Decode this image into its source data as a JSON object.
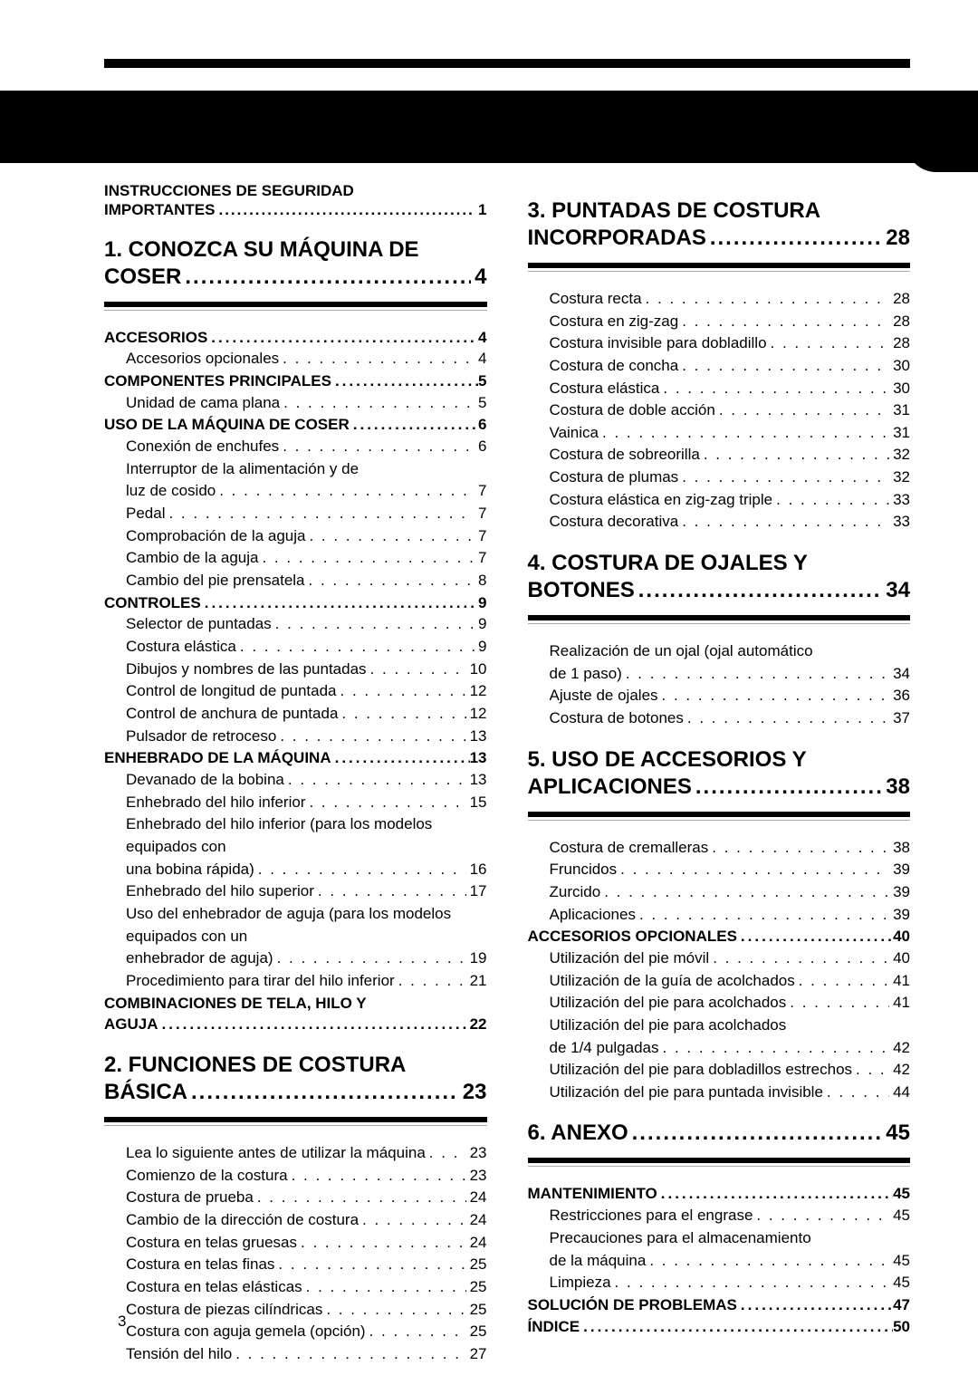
{
  "page_number": "3",
  "intro": {
    "label": "INSTRUCCIONES DE SEGURIDAD IMPORTANTES",
    "page": "1"
  },
  "left": {
    "chapters": [
      {
        "num": "1.",
        "title": "CONOZCA SU MÁQUINA DE COSER",
        "page": "4",
        "sections": [
          {
            "title": "ACCESORIOS",
            "page": "4",
            "entries": [
              {
                "label": "Accesorios opcionales",
                "page": "4"
              }
            ]
          },
          {
            "title": "COMPONENTES PRINCIPALES",
            "page": "5",
            "entries": [
              {
                "label": "Unidad de cama plana",
                "page": "5"
              }
            ]
          },
          {
            "title": "USO DE LA MÁQUINA DE COSER",
            "page": "6",
            "entries": [
              {
                "label": "Conexión de enchufes",
                "page": "6"
              },
              {
                "label": "Interruptor de la alimentación y de luz de cosido",
                "wrap": true,
                "page": "7"
              },
              {
                "label": "Pedal",
                "page": "7"
              },
              {
                "label": "Comprobación de la aguja",
                "page": "7"
              },
              {
                "label": "Cambio de la aguja",
                "page": "7"
              },
              {
                "label": "Cambio del pie prensatela",
                "page": "8"
              }
            ]
          },
          {
            "title": "CONTROLES",
            "page": "9",
            "entries": [
              {
                "label": "Selector de puntadas",
                "page": "9"
              },
              {
                "label": "Costura elástica",
                "page": "9"
              },
              {
                "label": "Dibujos y nombres de las puntadas",
                "page": "10"
              },
              {
                "label": "Control de longitud de puntada",
                "page": "12"
              },
              {
                "label": "Control de anchura de puntada",
                "page": "12"
              },
              {
                "label": "Pulsador de retroceso",
                "page": "13"
              }
            ]
          },
          {
            "title": "ENHEBRADO DE LA MÁQUINA",
            "page": "13",
            "entries": [
              {
                "label": "Devanado de la bobina",
                "page": "13"
              },
              {
                "label": "Enhebrado del hilo inferior",
                "page": "15"
              },
              {
                "label": "Enhebrado del hilo inferior (para los modelos equipados con una bobina rápida)",
                "wrap": true,
                "page": "16"
              },
              {
                "label": "Enhebrado del hilo superior",
                "page": "17"
              },
              {
                "label": "Uso del enhebrador de aguja (para los modelos equipados con un enhebrador de aguja)",
                "wrap": true,
                "page": "19"
              },
              {
                "label": "Procedimiento para tirar del hilo inferior",
                "page": "21"
              }
            ]
          },
          {
            "title": "COMBINACIONES DE TELA, HILO Y AGUJA",
            "page": "22",
            "wrap": true,
            "entries": []
          }
        ]
      },
      {
        "num": "2.",
        "title": "FUNCIONES DE COSTURA BÁSICA",
        "page": "23",
        "sections": [
          {
            "title": "",
            "page": "",
            "entries": [
              {
                "label": "Lea lo siguiente antes de utilizar la máquina",
                "page": "23"
              },
              {
                "label": "Comienzo de la costura",
                "page": "23"
              },
              {
                "label": "Costura de prueba",
                "page": "24"
              },
              {
                "label": "Cambio de la dirección de costura",
                "page": "24"
              },
              {
                "label": "Costura en telas gruesas",
                "page": "24"
              },
              {
                "label": "Costura en telas finas",
                "page": "25"
              },
              {
                "label": "Costura en telas elásticas",
                "page": "25"
              },
              {
                "label": "Costura de piezas cilíndricas",
                "page": "25"
              },
              {
                "label": "Costura con aguja gemela (opción)",
                "page": "25"
              },
              {
                "label": "Tensión del hilo",
                "page": "27"
              }
            ]
          }
        ]
      }
    ]
  },
  "right": {
    "chapters": [
      {
        "num": "3.",
        "title": "PUNTADAS DE COSTURA INCORPORADAS",
        "page": "28",
        "sections": [
          {
            "title": "",
            "page": "",
            "entries": [
              {
                "label": "Costura recta",
                "page": "28"
              },
              {
                "label": "Costura en zig-zag",
                "page": "28"
              },
              {
                "label": "Costura invisible para dobladillo",
                "page": "28"
              },
              {
                "label": "Costura de concha",
                "page": "30"
              },
              {
                "label": "Costura elástica",
                "page": "30"
              },
              {
                "label": "Costura de doble acción",
                "page": "31"
              },
              {
                "label": "Vainica",
                "page": "31"
              },
              {
                "label": "Costura de sobreorilla",
                "page": "32"
              },
              {
                "label": "Costura de plumas",
                "page": "32"
              },
              {
                "label": "Costura elástica en zig-zag triple",
                "page": "33"
              },
              {
                "label": "Costura decorativa",
                "page": "33"
              }
            ]
          }
        ]
      },
      {
        "num": "4.",
        "title": "COSTURA DE OJALES Y BOTONES",
        "page": "34",
        "sections": [
          {
            "title": "",
            "page": "",
            "entries": [
              {
                "label": "Realización de un ojal (ojal automático de 1 paso)",
                "wrap": true,
                "page": "34"
              },
              {
                "label": "Ajuste de ojales",
                "page": "36"
              },
              {
                "label": "Costura de botones",
                "page": "37"
              }
            ]
          }
        ]
      },
      {
        "num": "5.",
        "title": "USO DE ACCESORIOS Y APLICACIONES",
        "page": "38",
        "sections": [
          {
            "title": "",
            "page": "",
            "entries": [
              {
                "label": "Costura de cremalleras",
                "page": "38"
              },
              {
                "label": "Fruncidos",
                "page": "39"
              },
              {
                "label": "Zurcido",
                "page": "39"
              },
              {
                "label": "Aplicaciones",
                "page": "39"
              }
            ]
          },
          {
            "title": "ACCESORIOS OPCIONALES",
            "page": "40",
            "entries": [
              {
                "label": "Utilización del pie móvil",
                "page": "40"
              },
              {
                "label": "Utilización de la guía de acolchados",
                "page": "41"
              },
              {
                "label": "Utilización del pie para acolchados",
                "page": "41"
              },
              {
                "label": "Utilización del pie para acolchados de 1/4 pulgadas",
                "wrap": true,
                "page": "42"
              },
              {
                "label": "Utilización del pie para dobladillos estrechos",
                "page": "42"
              },
              {
                "label": "Utilización del pie para puntada invisible",
                "page": "44"
              }
            ]
          }
        ]
      },
      {
        "num": "6.",
        "title": "ANEXO",
        "page": "45",
        "inline": true,
        "sections": [
          {
            "title": "MANTENIMIENTO",
            "page": "45",
            "entries": [
              {
                "label": "Restricciones para el engrase",
                "page": "45"
              },
              {
                "label": "Precauciones para el almacenamiento de la máquina",
                "wrap": true,
                "page": "45"
              },
              {
                "label": "Limpieza",
                "page": "45"
              }
            ]
          },
          {
            "title": "SOLUCIÓN DE PROBLEMAS",
            "page": "47",
            "entries": []
          },
          {
            "title": "ÍNDICE",
            "page": "50",
            "entries": []
          }
        ]
      }
    ]
  }
}
